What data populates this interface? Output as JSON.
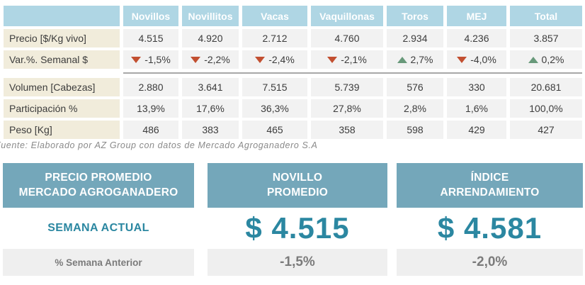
{
  "table": {
    "columns": [
      "Novillos",
      "Novillitos",
      "Vacas",
      "Vaquillonas",
      "Toros",
      "MEJ",
      "Total"
    ],
    "rows": [
      {
        "label": "Precio [$/Kg vivo]",
        "values": [
          "4.515",
          "4.920",
          "2.712",
          "4.760",
          "2.934",
          "4.236",
          "3.857"
        ]
      },
      {
        "label": "Var.%. Semanal $",
        "values": [
          "-1,5%",
          "-2,2%",
          "-2,4%",
          "-2,1%",
          "2,7%",
          "-4,0%",
          "0,2%"
        ],
        "trends": [
          "down",
          "down",
          "down",
          "down",
          "up",
          "down",
          "up"
        ]
      },
      {
        "label": "Volumen [Cabezas]",
        "values": [
          "2.880",
          "3.641",
          "7.515",
          "5.739",
          "576",
          "330",
          "20.681"
        ]
      },
      {
        "label": "Participación %",
        "values": [
          "13,9%",
          "17,6%",
          "36,3%",
          "27,8%",
          "2,8%",
          "1,6%",
          "100,0%"
        ]
      },
      {
        "label": "Peso [Kg]",
        "values": [
          "486",
          "383",
          "465",
          "358",
          "598",
          "429",
          "427"
        ]
      }
    ]
  },
  "source_note": "Fuente: Elaborado por AZ Group con datos de Mercado Agroganadero S.A",
  "panels": [
    {
      "title_line1": "PRECIO PROMEDIO",
      "title_line2": "MERCADO AGROGANADERO",
      "middle": "SEMANA ACTUAL",
      "bottom": "% Semana Anterior"
    },
    {
      "title_line1": "NOVILLO",
      "title_line2": "PROMEDIO",
      "middle": "$ 4.515",
      "bottom": "-1,5%"
    },
    {
      "title_line1": "ÍNDICE",
      "title_line2": "ARRENDAMIENTO",
      "middle": "$ 4.581",
      "bottom": "-2,0%"
    }
  ],
  "icons": {
    "trend_up": "up-triangle",
    "trend_down": "down-triangle"
  },
  "colors": {
    "header_blue": "#afd6e4",
    "label_beige": "#f1ecdb",
    "cell_gray": "#f2f2f2",
    "separator_gray": "#a8a8a8",
    "up_green": "#68997a",
    "down_red": "#c24f30",
    "panel_header_blue": "#74a7ba",
    "teal_accent": "#2b87a1",
    "bar_gray": "#efefef",
    "muted_gray": "#7b7b7b",
    "text_dark": "#3c3c3c"
  }
}
